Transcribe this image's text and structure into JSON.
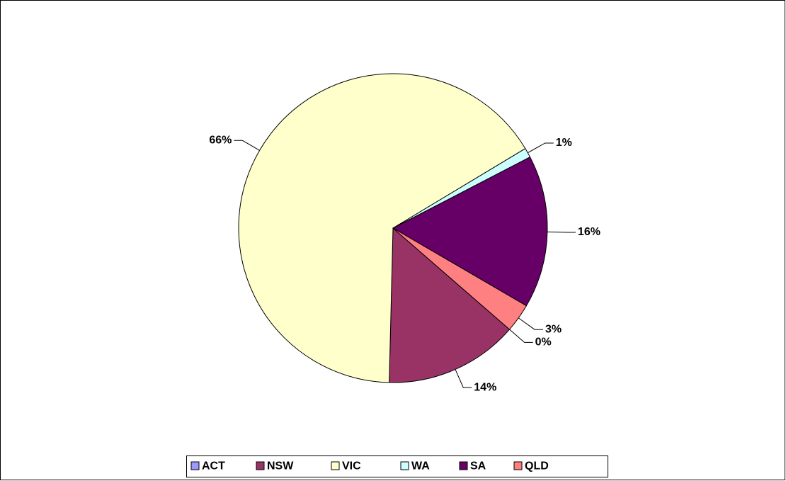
{
  "chart_data": {
    "type": "pie",
    "categories": [
      "ACT",
      "NSW",
      "VIC",
      "WA",
      "SA",
      "QLD"
    ],
    "values": [
      0,
      14,
      66,
      1,
      16,
      3
    ],
    "value_labels": [
      "0%",
      "14%",
      "66%",
      "1%",
      "16%",
      "3%"
    ],
    "colors": [
      "#9999ff",
      "#993366",
      "#ffffcc",
      "#ccffff",
      "#660066",
      "#ff8080"
    ],
    "legend": "bottom"
  }
}
